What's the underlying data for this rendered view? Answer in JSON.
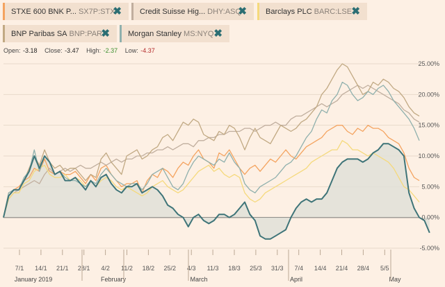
{
  "legend": [
    {
      "name": "STXE 600 BNK P...",
      "ticker": "SX7P:STX",
      "color": "#f4a35f"
    },
    {
      "name": "Credit Suisse Hig...",
      "ticker": "DHY:ASQ",
      "color": "#c0ae9e"
    },
    {
      "name": "Barclays PLC",
      "ticker": "BARC:LSE",
      "color": "#f5d97c"
    },
    {
      "name": "BNP Paribas SA",
      "ticker": "BNP:PAR",
      "color": "#c1a983"
    },
    {
      "name": "Morgan Stanley",
      "ticker": "MS:NYQ",
      "color": "#8fb0ad"
    }
  ],
  "ohlc": {
    "open_label": "Open:",
    "open": "-3.18",
    "close_label": "Close:",
    "close": "-3.47",
    "high_label": "High:",
    "high": "-2.37",
    "low_label": "Low:",
    "low": "-4.37"
  },
  "chart_data": {
    "type": "line",
    "y_unit": "%",
    "ylim": [
      -5,
      25
    ],
    "yticks": [
      "25.00%",
      "20.00%",
      "15.00%",
      "10.00%",
      "5.00%",
      "0.00%",
      "-5.00%"
    ],
    "yticks_values": [
      25,
      20,
      15,
      10,
      5,
      0,
      -5
    ],
    "xticks": [
      "7/1",
      "14/1",
      "21/1",
      "28/1",
      "4/2",
      "11/2",
      "18/2",
      "25/2",
      "4/3",
      "11/3",
      "18/3",
      "25/3",
      "31/3",
      "7/4",
      "14/4",
      "21/4",
      "28/4",
      "5/5"
    ],
    "month_labels": [
      "January 2019",
      "February",
      "March",
      "April",
      "May"
    ],
    "series": [
      {
        "name": "STXE 600 BNK P...",
        "color": "#f4a35f",
        "width": 1.3,
        "values": [
          0,
          3.5,
          4.5,
          5,
          6,
          6.5,
          8,
          7.5,
          9.5,
          7.5,
          7,
          7.5,
          7,
          7,
          7.5,
          6.5,
          5.5,
          7,
          6,
          8,
          8.5,
          7,
          6,
          5,
          5.5,
          5.5,
          6,
          4,
          6,
          7,
          6.5,
          8,
          7.5,
          6.5,
          8,
          9,
          8.5,
          10,
          11,
          9.5,
          9,
          8,
          10.5,
          10,
          11,
          9.5,
          8,
          7,
          8,
          8.5,
          7.5,
          8.5,
          9.5,
          9,
          10,
          11,
          10,
          9.5,
          10.5,
          11.5,
          12,
          12.5,
          13,
          14,
          14.5,
          15,
          15,
          14,
          13.5,
          14.5,
          14,
          15,
          14.5,
          14.5,
          14,
          13,
          12.5,
          12,
          10.5,
          8,
          6.5,
          6
        ]
      },
      {
        "name": "Credit Suisse Hig...",
        "color": "#c0ae9e",
        "width": 1.3,
        "values": [
          0,
          3,
          4,
          4.5,
          5,
          5.5,
          6,
          5.5,
          7,
          8,
          7,
          7.5,
          8,
          7.5,
          8,
          8.5,
          8,
          8,
          8.5,
          9,
          8.5,
          9,
          9.5,
          9,
          9.5,
          9.5,
          10,
          10,
          10.5,
          10.5,
          11,
          11,
          11.5,
          11,
          11.5,
          12,
          12,
          11.5,
          12.5,
          12.5,
          13,
          13,
          13.5,
          13.5,
          14,
          14,
          14,
          14.5,
          14.5,
          14,
          14.5,
          15,
          15,
          15.5,
          15,
          15,
          16,
          16.5,
          16.5,
          17,
          17.5,
          18,
          18.5,
          18,
          18.5,
          19,
          20,
          20.5,
          21,
          21.5,
          21,
          21.5,
          21,
          20.5,
          20,
          19.5,
          19,
          18.5,
          17.5,
          17,
          16,
          15.5
        ]
      },
      {
        "name": "Barclays PLC",
        "color": "#f5d97c",
        "width": 1.3,
        "values": [
          0,
          3,
          4,
          4,
          5.5,
          6,
          7.5,
          8,
          8.5,
          7,
          6.5,
          6.5,
          7,
          6,
          6.5,
          6,
          5,
          6,
          5,
          6,
          6.5,
          6,
          5,
          4.5,
          5,
          4.5,
          4,
          3.5,
          4,
          5,
          5.5,
          6,
          5,
          4.5,
          4,
          4.5,
          5.5,
          6.5,
          7.5,
          8,
          8.5,
          7.5,
          8,
          7,
          6.5,
          7,
          6.5,
          4,
          3,
          2.5,
          3,
          4,
          4.5,
          5,
          5.5,
          6,
          6.5,
          7,
          7.5,
          8,
          9,
          9.5,
          10,
          10.5,
          11,
          11,
          12.5,
          12,
          11,
          11,
          10.5,
          10,
          10.5,
          10,
          9.5,
          9,
          8,
          6.5,
          5,
          4.5,
          3.5,
          2.5
        ]
      },
      {
        "name": "BNP Paribas SA",
        "color": "#c1a983",
        "width": 1.3,
        "values": [
          0,
          4,
          4.5,
          4.5,
          6,
          8,
          10,
          8.5,
          11,
          9,
          8,
          8.5,
          7.5,
          8,
          8,
          7,
          6,
          7,
          6.5,
          9.5,
          10.5,
          9,
          8,
          7,
          10,
          10.5,
          11,
          9.5,
          10,
          11,
          11.5,
          13,
          13.5,
          12.5,
          14,
          15.5,
          15,
          16,
          15.5,
          13.5,
          13,
          12.5,
          14,
          13.5,
          15,
          14.5,
          13,
          11,
          13,
          14.5,
          13,
          12.5,
          12,
          13.5,
          15,
          14.5,
          14,
          14.5,
          15.5,
          16,
          17,
          18,
          20,
          21,
          22.5,
          24,
          25,
          24.5,
          23,
          21.5,
          20,
          20.5,
          22,
          21.5,
          22.5,
          22,
          21,
          20.5,
          19.5,
          18,
          17,
          16.5
        ]
      },
      {
        "name": "Morgan Stanley",
        "color": "#8fb0ad",
        "width": 1.3,
        "values": [
          0,
          4,
          4.5,
          4.5,
          6.5,
          7.5,
          11,
          7.5,
          10,
          9,
          7,
          7.5,
          6.5,
          6,
          6,
          5.5,
          5,
          6,
          5.5,
          7,
          8,
          7,
          6,
          5.5,
          5,
          5.5,
          5.5,
          4.5,
          5.5,
          7,
          7.5,
          8,
          6.5,
          5,
          4.5,
          5.5,
          7.5,
          9,
          10,
          9.5,
          9,
          8.5,
          9.5,
          9,
          10.5,
          9,
          8,
          5.5,
          4.5,
          4,
          5,
          5.5,
          6,
          6.5,
          7.5,
          8.5,
          9,
          10,
          11.5,
          13,
          14,
          16,
          17.5,
          17,
          19,
          20,
          22,
          21.5,
          20,
          19,
          19.5,
          20.5,
          20,
          21,
          21.5,
          20.5,
          19,
          18,
          17,
          16,
          14.5,
          12.5
        ]
      },
      {
        "name": "STXE 600 BNK P... (area)",
        "color": "#3e7478",
        "width": 2,
        "fill": "#e0e0d8",
        "values": [
          0,
          3.5,
          4.5,
          4.5,
          6,
          7.5,
          10,
          8,
          10,
          9,
          7,
          7.5,
          6,
          6,
          6.5,
          5.5,
          4.5,
          6,
          5,
          6.5,
          7,
          5.5,
          4.5,
          4,
          5,
          5,
          5.5,
          4,
          4.5,
          5,
          4.5,
          3.5,
          2,
          1.5,
          0.5,
          0,
          -1.5,
          0,
          0.5,
          -0.5,
          -1,
          -0.5,
          0.5,
          0.5,
          0,
          0.5,
          1.5,
          2.5,
          0.5,
          -0.5,
          -3,
          -3.5,
          -3.5,
          -3,
          -2.5,
          -2,
          0,
          1.5,
          2.5,
          3,
          2.5,
          3,
          3,
          4,
          6,
          8,
          9,
          9.5,
          9.5,
          9.5,
          9,
          9.5,
          10.5,
          11,
          12,
          12,
          11.5,
          11,
          10,
          4,
          1.5,
          0,
          -0.5,
          -2.5
        ]
      }
    ]
  }
}
